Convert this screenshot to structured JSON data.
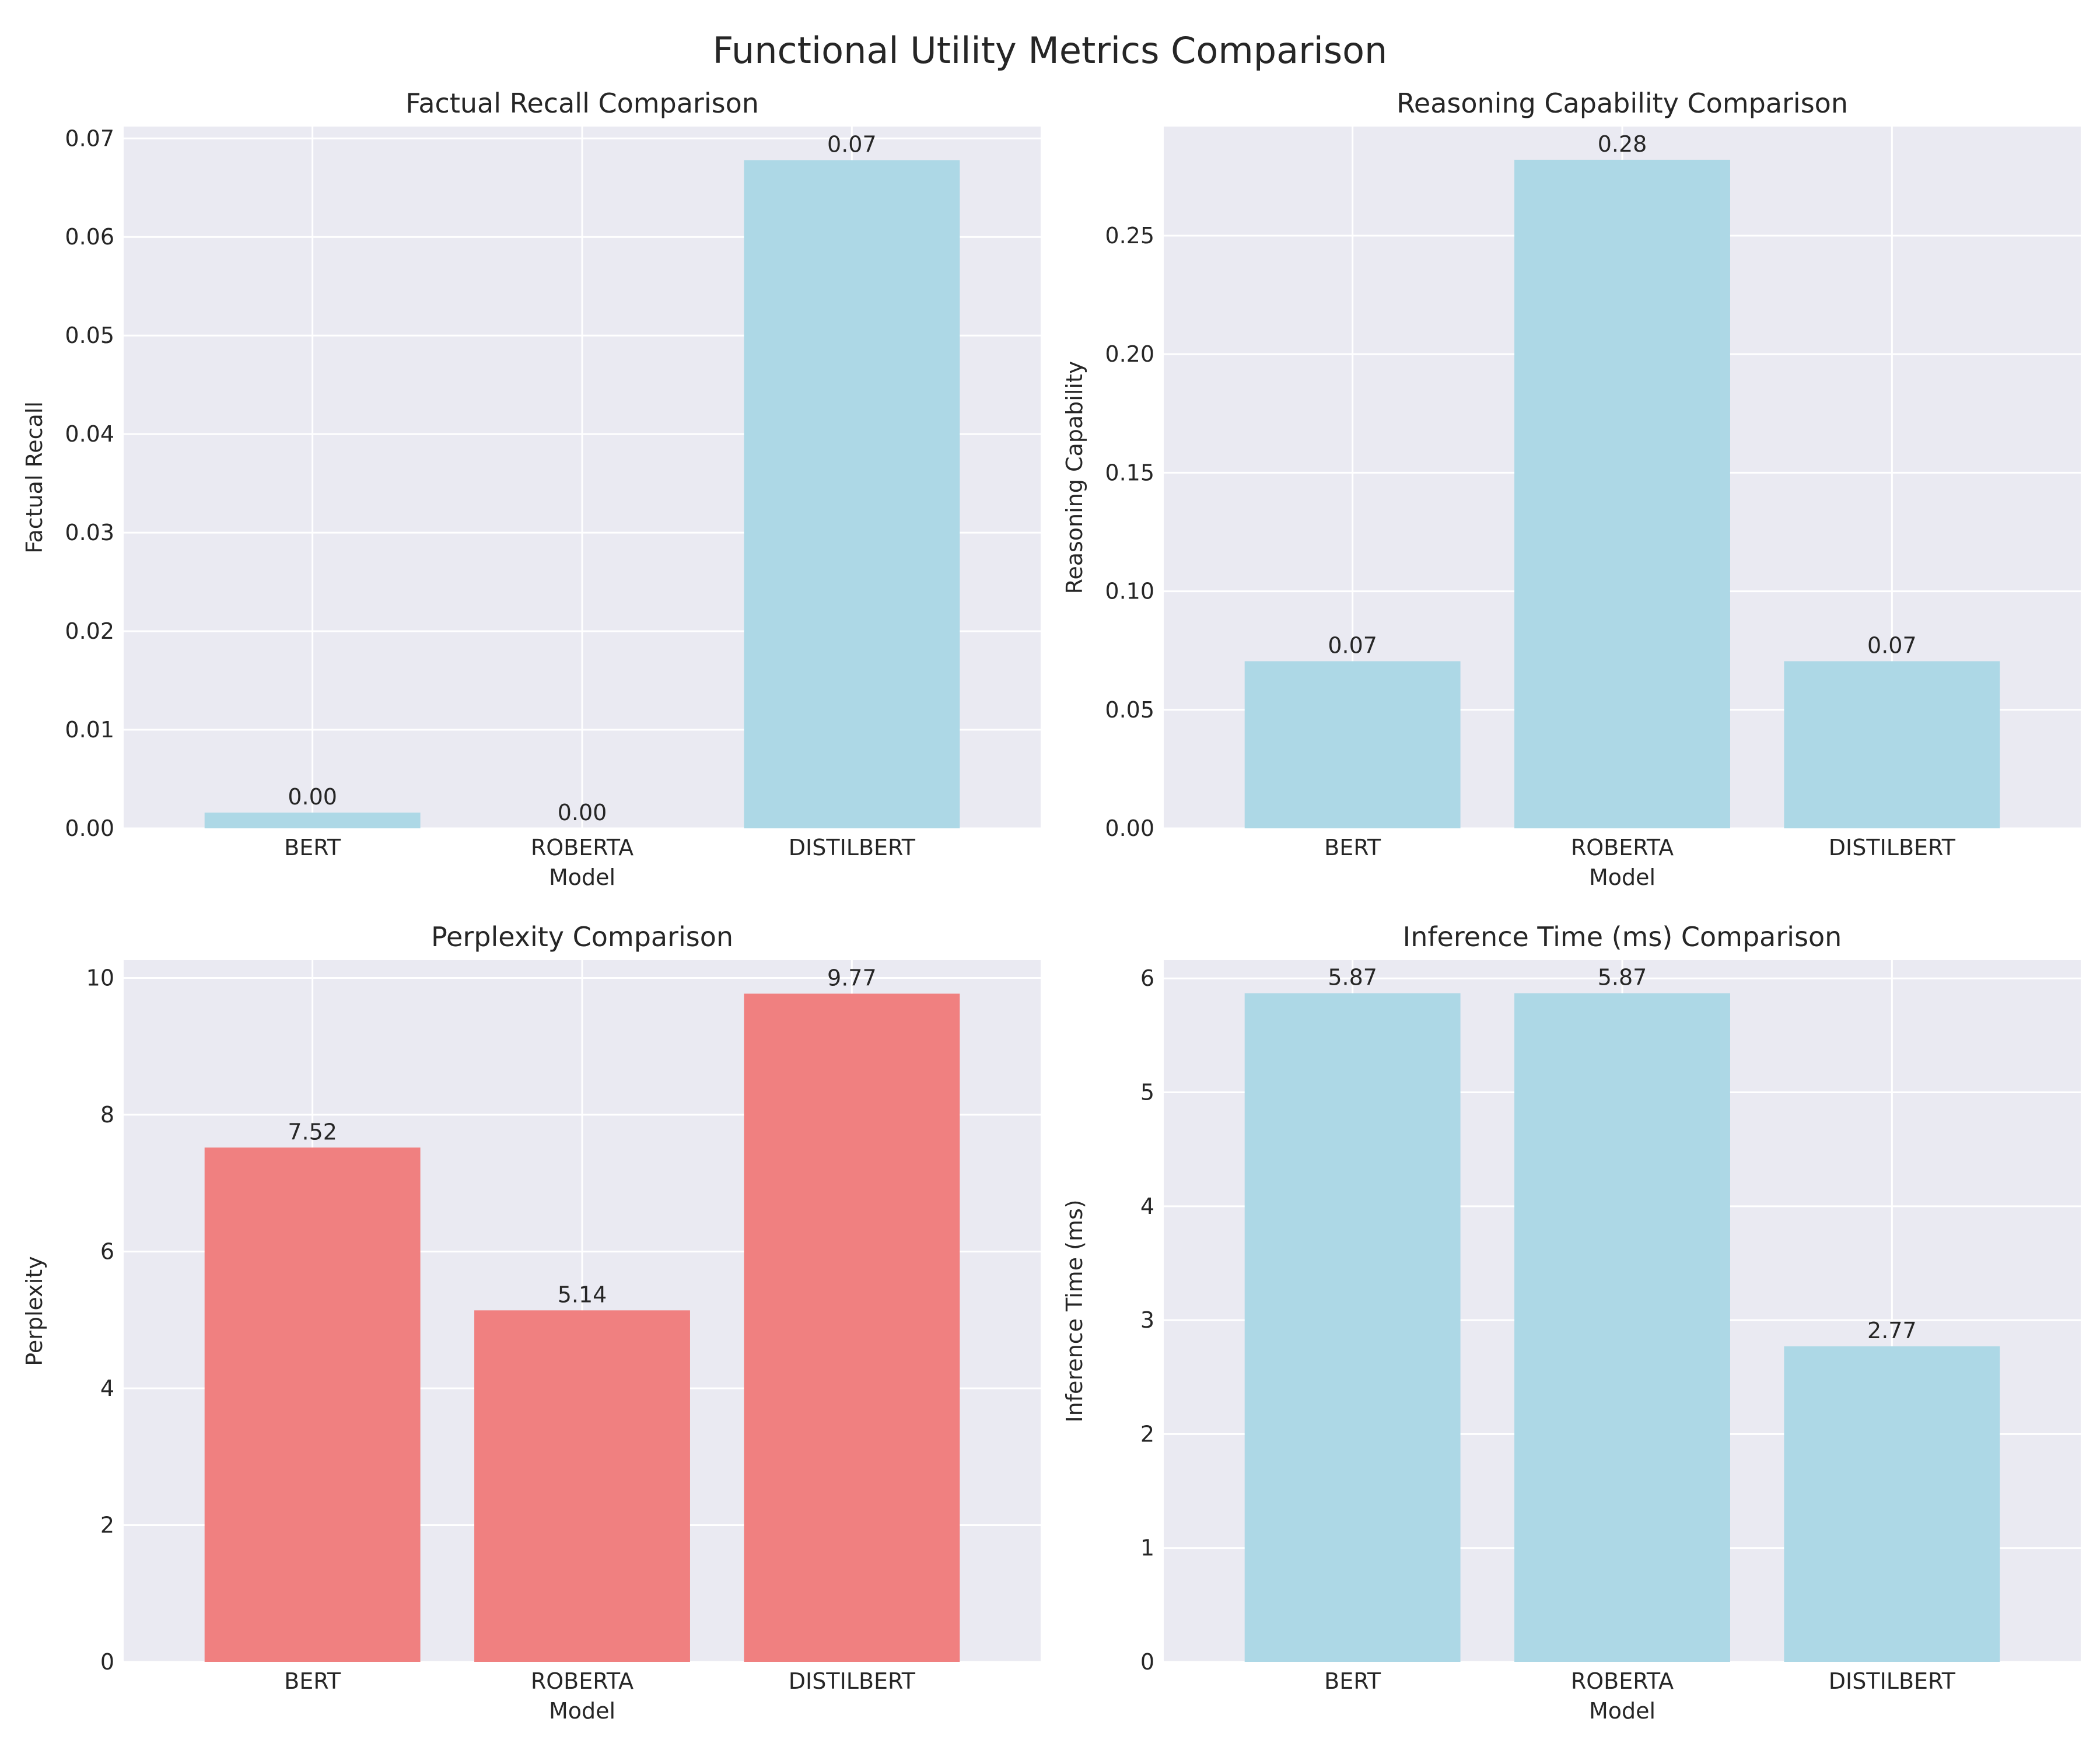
{
  "figure": {
    "title": "Functional Utility Metrics Comparison"
  },
  "chart_data": [
    {
      "type": "bar",
      "title": "Factual Recall Comparison",
      "xlabel": "Model",
      "ylabel": "Factual Recall",
      "categories": [
        "BERT",
        "ROBERTA",
        "DISTILBERT"
      ],
      "values": [
        0.0016,
        0.0,
        0.0678
      ],
      "value_labels": [
        "0.00",
        "0.00",
        "0.07"
      ],
      "ylim": [
        0,
        0.0712
      ],
      "yticks": [
        0,
        0.01,
        0.02,
        0.03,
        0.04,
        0.05,
        0.06,
        0.07
      ],
      "ytick_labels": [
        "0.00",
        "0.01",
        "0.02",
        "0.03",
        "0.04",
        "0.05",
        "0.06",
        "0.07"
      ],
      "bar_color": "#add8e6",
      "grid": true,
      "legend": "none"
    },
    {
      "type": "bar",
      "title": "Reasoning Capability Comparison",
      "xlabel": "Model",
      "ylabel": "Reasoning Capability",
      "categories": [
        "BERT",
        "ROBERTA",
        "DISTILBERT"
      ],
      "values": [
        0.0705,
        0.282,
        0.0705
      ],
      "value_labels": [
        "0.07",
        "0.28",
        "0.07"
      ],
      "ylim": [
        0,
        0.296
      ],
      "yticks": [
        0,
        0.05,
        0.1,
        0.15,
        0.2,
        0.25
      ],
      "ytick_labels": [
        "0.00",
        "0.05",
        "0.10",
        "0.15",
        "0.20",
        "0.25"
      ],
      "bar_color": "#add8e6",
      "grid": true,
      "legend": "none"
    },
    {
      "type": "bar",
      "title": "Perplexity Comparison",
      "xlabel": "Model",
      "ylabel": "Perplexity",
      "categories": [
        "BERT",
        "ROBERTA",
        "DISTILBERT"
      ],
      "values": [
        7.52,
        5.14,
        9.77
      ],
      "value_labels": [
        "7.52",
        "5.14",
        "9.77"
      ],
      "ylim": [
        0,
        10.26
      ],
      "yticks": [
        0,
        2,
        4,
        6,
        8,
        10
      ],
      "ytick_labels": [
        "0",
        "2",
        "4",
        "6",
        "8",
        "10"
      ],
      "bar_color": "#f08080",
      "grid": true,
      "legend": "none"
    },
    {
      "type": "bar",
      "title": "Inference Time (ms) Comparison",
      "xlabel": "Model",
      "ylabel": "Inference Time (ms)",
      "categories": [
        "BERT",
        "ROBERTA",
        "DISTILBERT"
      ],
      "values": [
        5.87,
        5.87,
        2.77
      ],
      "value_labels": [
        "5.87",
        "5.87",
        "2.77"
      ],
      "ylim": [
        0,
        6.16
      ],
      "yticks": [
        0,
        1,
        2,
        3,
        4,
        5,
        6
      ],
      "ytick_labels": [
        "0",
        "1",
        "2",
        "3",
        "4",
        "5",
        "6"
      ],
      "bar_color": "#add8e6",
      "grid": true,
      "legend": "none"
    }
  ]
}
